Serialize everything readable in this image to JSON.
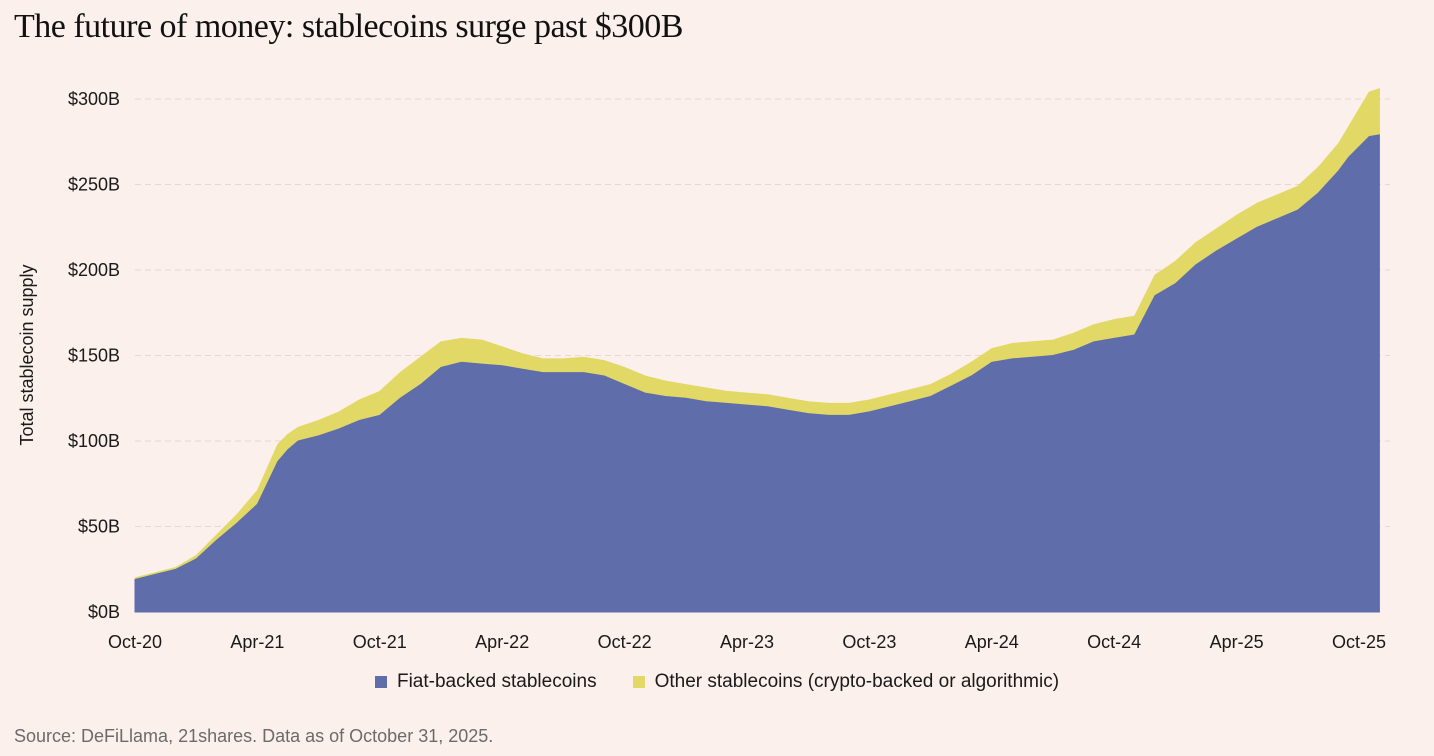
{
  "chart_data": {
    "type": "area",
    "stacked": true,
    "title": "The future of money: stablecoins surge past $300B",
    "ylabel": "Total stablecoin supply",
    "xlabel": "",
    "ylim": [
      0,
      300
    ],
    "y_unit": "billion USD",
    "y_ticks": [
      {
        "value": 0,
        "label": "$0B"
      },
      {
        "value": 50,
        "label": "$50B"
      },
      {
        "value": 100,
        "label": "$100B"
      },
      {
        "value": 150,
        "label": "$150B"
      },
      {
        "value": 200,
        "label": "$200B"
      },
      {
        "value": 250,
        "label": "$250B"
      },
      {
        "value": 300,
        "label": "$300B"
      }
    ],
    "x_ticks": [
      {
        "month": 0,
        "label": "Oct-20"
      },
      {
        "month": 6,
        "label": "Apr-21"
      },
      {
        "month": 12,
        "label": "Oct-21"
      },
      {
        "month": 18,
        "label": "Apr-22"
      },
      {
        "month": 24,
        "label": "Oct-22"
      },
      {
        "month": 30,
        "label": "Apr-23"
      },
      {
        "month": 36,
        "label": "Oct-23"
      },
      {
        "month": 42,
        "label": "Apr-24"
      },
      {
        "month": 48,
        "label": "Oct-24"
      },
      {
        "month": 54,
        "label": "Apr-25"
      },
      {
        "month": 60,
        "label": "Oct-25"
      }
    ],
    "x_range": [
      0,
      61
    ],
    "x_months": [
      0,
      1,
      2,
      3,
      4,
      5,
      6,
      7,
      7.5,
      8,
      9,
      10,
      11,
      12,
      13,
      14,
      15,
      16,
      17,
      18,
      19,
      20,
      21,
      22,
      23,
      24,
      25,
      26,
      27,
      28,
      29,
      30,
      31,
      32,
      33,
      34,
      35,
      36,
      37,
      38,
      39,
      40,
      41,
      42,
      43,
      44,
      45,
      46,
      47,
      48,
      49,
      50,
      51,
      52,
      53,
      54,
      55,
      56,
      57,
      58,
      59,
      59.5,
      60,
      60.5,
      61
    ],
    "series": [
      {
        "name": "Fiat-backed stablecoins",
        "color": "#5f6dab",
        "values": [
          19,
          22,
          25,
          31,
          42,
          52,
          63,
          88,
          95,
          100,
          103,
          107,
          112,
          115,
          125,
          133,
          143,
          146,
          145,
          144,
          142,
          140,
          140,
          140,
          138,
          133,
          128,
          126,
          125,
          123,
          122,
          121,
          120,
          118,
          116,
          115,
          115,
          117,
          120,
          123,
          126,
          132,
          138,
          146,
          148,
          149,
          150,
          153,
          158,
          160,
          162,
          185,
          192,
          203,
          211,
          218,
          225,
          230,
          235,
          245,
          258,
          266,
          272,
          278,
          279
        ]
      },
      {
        "name": "Other stablecoins (crypto-backed or algorithmic)",
        "color": "#e2d866",
        "values": [
          1,
          1,
          1,
          2,
          3,
          5,
          8,
          10,
          9,
          8,
          9,
          10,
          12,
          14,
          15,
          16,
          15,
          14,
          14,
          11,
          9,
          8,
          8,
          9,
          9,
          10,
          10,
          9,
          8,
          8,
          7,
          7,
          7,
          7,
          7,
          7,
          7,
          7,
          7,
          7,
          7,
          7,
          8,
          8,
          9,
          9,
          9,
          10,
          10,
          11,
          11,
          12,
          13,
          13,
          13,
          14,
          14,
          14,
          14,
          15,
          16,
          18,
          22,
          26,
          27
        ]
      }
    ],
    "legend_position": "bottom-center",
    "grid": "horizontal dashed"
  },
  "legend": [
    {
      "label": "Fiat-backed stablecoins",
      "color": "#5f6dab"
    },
    {
      "label": "Other stablecoins (crypto-backed or algorithmic)",
      "color": "#e2d866"
    }
  ],
  "source": "Source: DeFiLlama, 21shares. Data as of October 31, 2025."
}
